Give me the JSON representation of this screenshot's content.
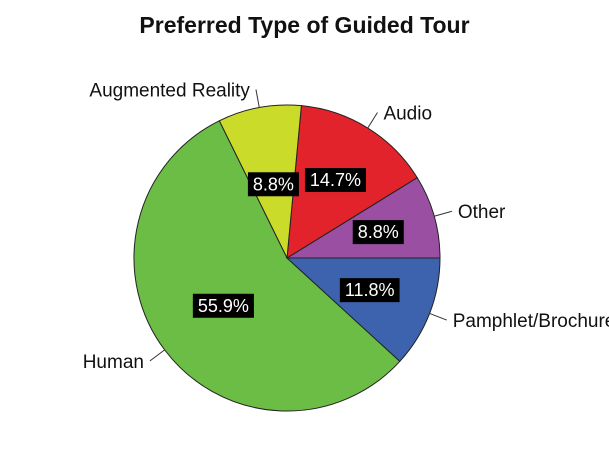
{
  "chart_data": {
    "type": "pie",
    "title": "Preferred Type of Guided Tour",
    "start_direction": "east",
    "direction": "counterclockwise",
    "slices": [
      {
        "label": "Other",
        "value": 8.8,
        "value_label": "8.8%",
        "color": "#9b4fa2"
      },
      {
        "label": "Audio",
        "value": 14.7,
        "value_label": "14.7%",
        "color": "#e3232b"
      },
      {
        "label": "Augmented Reality",
        "value": 8.8,
        "value_label": "8.8%",
        "color": "#cbdb2a"
      },
      {
        "label": "Human",
        "value": 55.9,
        "value_label": "55.9%",
        "color": "#6cbd46"
      },
      {
        "label": "Pamphlet/Brochure",
        "value": 11.8,
        "value_label": "11.8%",
        "color": "#3d62ae"
      }
    ]
  }
}
